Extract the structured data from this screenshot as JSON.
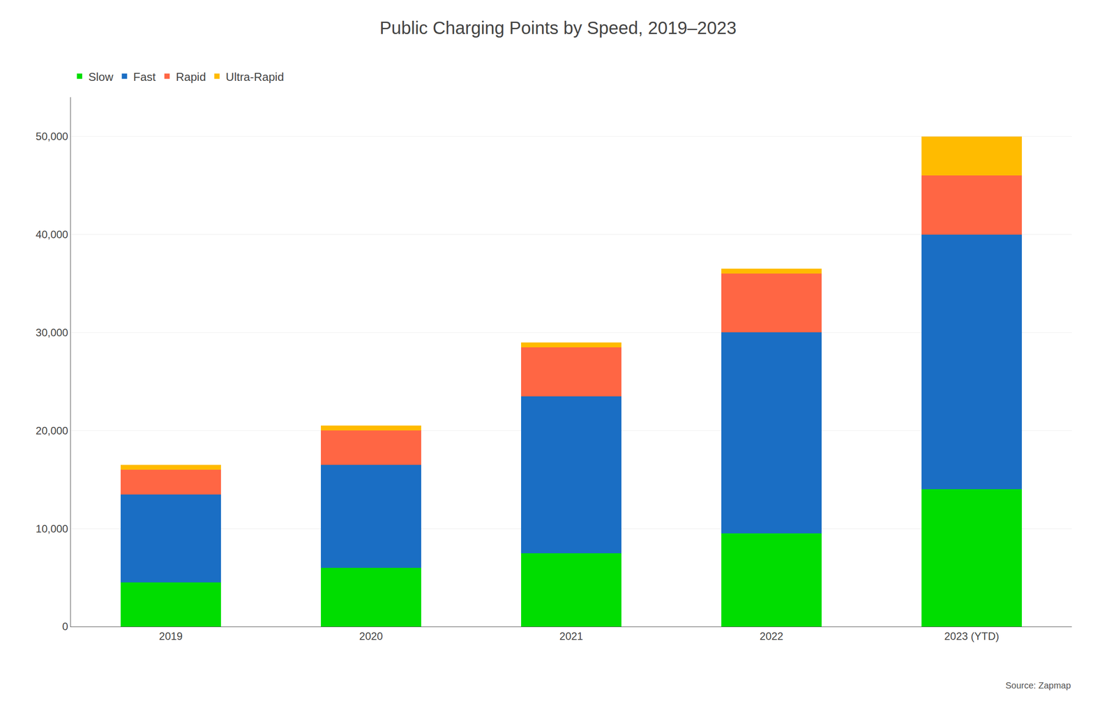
{
  "chart_data": {
    "type": "bar",
    "title": "Public Charging Points by Speed, 2019–2023",
    "categories": [
      "2019",
      "2020",
      "2021",
      "2022",
      "2023 (YTD)"
    ],
    "series": [
      {
        "name": "Slow",
        "color": "#00dd00",
        "values": [
          4500,
          6000,
          7500,
          9500,
          14000
        ]
      },
      {
        "name": "Fast",
        "color": "#1a6ec4",
        "values": [
          9000,
          10500,
          16000,
          20500,
          26000
        ]
      },
      {
        "name": "Rapid",
        "color": "#ff6644",
        "values": [
          2500,
          3500,
          5000,
          6000,
          6000
        ]
      },
      {
        "name": "Ultra-Rapid",
        "color": "#ffbb00",
        "values": [
          500,
          500,
          500,
          500,
          4000
        ]
      }
    ],
    "stacked": true,
    "ylim": [
      0,
      54000
    ],
    "yticks": [
      0,
      {
        "value": 10000,
        "label": "10,000"
      },
      {
        "value": 20000,
        "label": "20,000"
      },
      {
        "value": 30000,
        "label": "30,000"
      },
      {
        "value": 40000,
        "label": "40,000"
      },
      {
        "value": 50000,
        "label": "50,000"
      }
    ],
    "grid": true,
    "legend": "top left",
    "annotations": [
      "Source: Zapmap"
    ]
  }
}
